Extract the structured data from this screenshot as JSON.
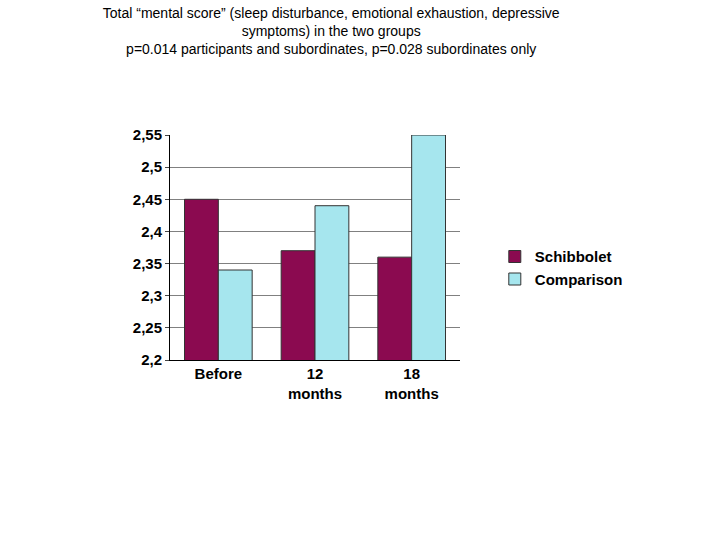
{
  "chart_data": {
    "type": "bar",
    "title": "Total “mental score” (sleep disturbance, emotional exhaustion, depressive\nsymptoms) in the two groups\np=0.014 participants and subordinates, p=0.028 subordinates only",
    "categories": [
      "Before",
      "12 months",
      "18 months"
    ],
    "series": [
      {
        "name": "Schibbolet",
        "color": "#8b0a50",
        "values": [
          2.45,
          2.37,
          2.36
        ]
      },
      {
        "name": "Comparison",
        "color": "#a6e6ee",
        "values": [
          2.34,
          2.44,
          2.55
        ]
      }
    ],
    "ylim": [
      2.2,
      2.55
    ],
    "yticks": [
      {
        "value": 2.2,
        "label": "2,2"
      },
      {
        "value": 2.25,
        "label": "2,25"
      },
      {
        "value": 2.3,
        "label": "2,3"
      },
      {
        "value": 2.35,
        "label": "2,35"
      },
      {
        "value": 2.4,
        "label": "2,4"
      },
      {
        "value": 2.45,
        "label": "2,45"
      },
      {
        "value": 2.5,
        "label": "2,5"
      },
      {
        "value": 2.55,
        "label": "2,55"
      }
    ],
    "grid": true,
    "legend": "right"
  }
}
